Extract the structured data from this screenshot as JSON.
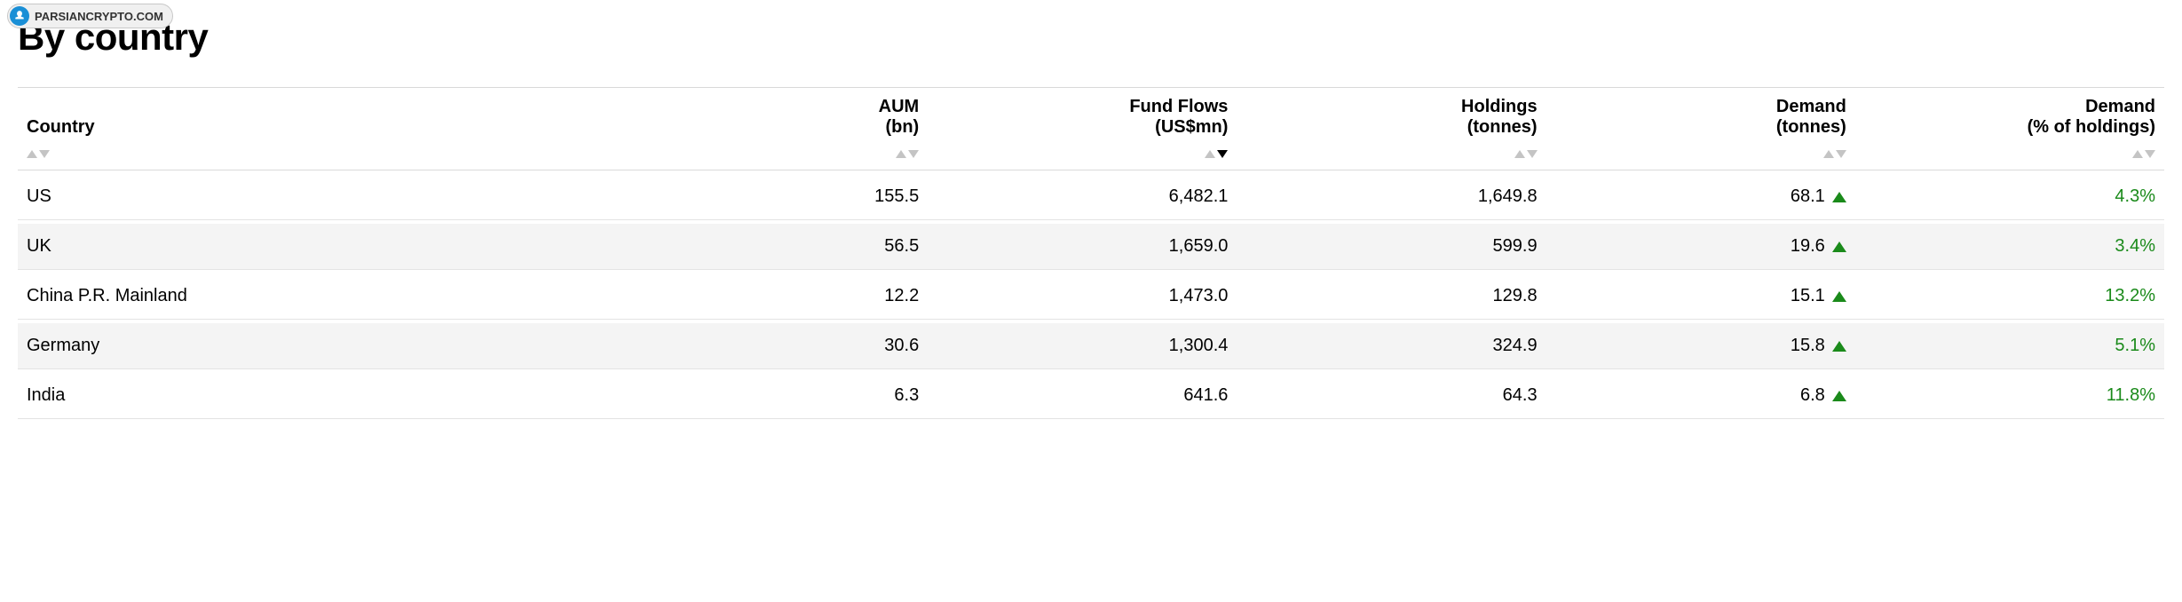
{
  "watermark": {
    "label": "PARSIANCRYPTO.COM",
    "icon_bg": "#1a8fd6",
    "border_color": "#c8c8c8"
  },
  "title": "By country",
  "colors": {
    "text": "#000000",
    "background": "#ffffff",
    "row_alt": "#f4f4f4",
    "border": "#d9d9d9",
    "row_border": "#e3e3e3",
    "sort_inactive": "#c4c4c4",
    "sort_active": "#000000",
    "positive": "#1a8a1a"
  },
  "table": {
    "type": "table",
    "columns": [
      {
        "key": "country",
        "line1": "",
        "line2": "Country",
        "align": "left",
        "sort": "none"
      },
      {
        "key": "aum",
        "line1": "AUM",
        "line2": "(bn)",
        "align": "right",
        "sort": "none"
      },
      {
        "key": "flows",
        "line1": "Fund Flows",
        "line2": "(US$mn)",
        "align": "right",
        "sort": "desc"
      },
      {
        "key": "holdings",
        "line1": "Holdings",
        "line2": "(tonnes)",
        "align": "right",
        "sort": "none"
      },
      {
        "key": "demand_t",
        "line1": "Demand",
        "line2": "(tonnes)",
        "align": "right",
        "sort": "none",
        "indicator": true
      },
      {
        "key": "demand_pct",
        "line1": "Demand",
        "line2": "(% of holdings)",
        "align": "right",
        "sort": "none",
        "colored": true
      }
    ],
    "rows": [
      {
        "country": "US",
        "aum": "155.5",
        "flows": "6,482.1",
        "holdings": "1,649.8",
        "demand_t": "68.1",
        "demand_dir": "up",
        "demand_pct": "4.3%"
      },
      {
        "country": "UK",
        "aum": "56.5",
        "flows": "1,659.0",
        "holdings": "599.9",
        "demand_t": "19.6",
        "demand_dir": "up",
        "demand_pct": "3.4%"
      },
      {
        "country": "China P.R. Mainland",
        "aum": "12.2",
        "flows": "1,473.0",
        "holdings": "129.8",
        "demand_t": "15.1",
        "demand_dir": "up",
        "demand_pct": "13.2%"
      },
      {
        "country": "Germany",
        "aum": "30.6",
        "flows": "1,300.4",
        "holdings": "324.9",
        "demand_t": "15.8",
        "demand_dir": "up",
        "demand_pct": "5.1%"
      },
      {
        "country": "India",
        "aum": "6.3",
        "flows": "641.6",
        "holdings": "64.3",
        "demand_t": "6.8",
        "demand_dir": "up",
        "demand_pct": "11.8%"
      }
    ]
  }
}
